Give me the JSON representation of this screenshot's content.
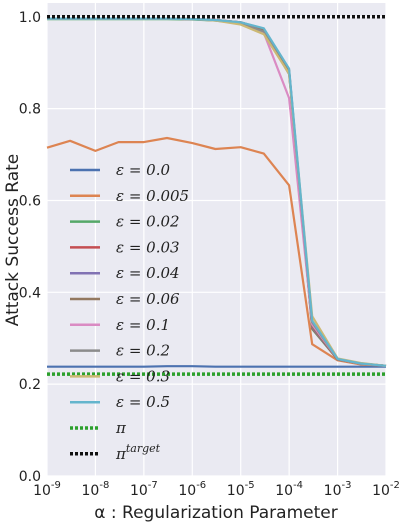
{
  "chart_data": {
    "type": "line",
    "title": "",
    "xlabel": "α : Regularization Parameter",
    "ylabel": "Attack Success Rate",
    "x_scale": "log",
    "xlim": [
      1e-09,
      0.01
    ],
    "ylim": [
      0.0,
      1.03
    ],
    "grid": true,
    "legend_position": "left",
    "x_tick_labels": [
      "10^-9",
      "10^-8",
      "10^-7",
      "10^-6",
      "10^-5",
      "10^-4",
      "10^-3",
      "10^-2"
    ],
    "y_tick_labels": [
      "0.0",
      "0.2",
      "0.4",
      "0.6",
      "0.8",
      "1.0"
    ],
    "x": [
      1e-09,
      3e-09,
      1e-08,
      3e-08,
      1e-07,
      3e-07,
      1e-06,
      3e-06,
      1e-05,
      3e-05,
      0.0001,
      0.0003,
      0.001,
      0.003,
      0.01
    ],
    "series": [
      {
        "name": "ε = 0.0",
        "color": "#4c72b0",
        "style": "solid",
        "values": [
          0.238,
          0.238,
          0.238,
          0.238,
          0.238,
          0.239,
          0.239,
          0.238,
          0.238,
          0.238,
          0.238,
          0.238,
          0.238,
          0.238,
          0.238
        ]
      },
      {
        "name": "ε = 0.005",
        "color": "#dd8452",
        "style": "solid",
        "values": [
          0.715,
          0.73,
          0.708,
          0.727,
          0.727,
          0.736,
          0.725,
          0.712,
          0.716,
          0.702,
          0.633,
          0.287,
          0.252,
          0.243,
          0.24
        ]
      },
      {
        "name": "ε = 0.02",
        "color": "#55a868",
        "style": "solid",
        "values": [
          0.995,
          0.995,
          0.995,
          0.995,
          0.995,
          0.995,
          0.994,
          0.992,
          0.987,
          0.97,
          0.88,
          0.32,
          0.254,
          0.245,
          0.24
        ]
      },
      {
        "name": "ε = 0.03",
        "color": "#c44e52",
        "style": "solid",
        "values": [
          0.996,
          0.996,
          0.996,
          0.996,
          0.996,
          0.996,
          0.995,
          0.993,
          0.988,
          0.972,
          0.882,
          0.322,
          0.254,
          0.245,
          0.24
        ]
      },
      {
        "name": "ε = 0.04",
        "color": "#8172b3",
        "style": "solid",
        "values": [
          0.996,
          0.996,
          0.996,
          0.996,
          0.996,
          0.996,
          0.995,
          0.993,
          0.988,
          0.972,
          0.882,
          0.324,
          0.254,
          0.245,
          0.24
        ]
      },
      {
        "name": "ε = 0.06",
        "color": "#937860",
        "style": "solid",
        "values": [
          0.996,
          0.996,
          0.996,
          0.996,
          0.996,
          0.996,
          0.995,
          0.993,
          0.988,
          0.973,
          0.884,
          0.326,
          0.254,
          0.245,
          0.24
        ]
      },
      {
        "name": "ε = 0.1",
        "color": "#da8bc3",
        "style": "solid",
        "values": [
          0.996,
          0.996,
          0.996,
          0.996,
          0.996,
          0.996,
          0.995,
          0.993,
          0.987,
          0.965,
          0.823,
          0.33,
          0.255,
          0.245,
          0.24
        ]
      },
      {
        "name": "ε = 0.2",
        "color": "#8c8c8c",
        "style": "solid",
        "values": [
          0.996,
          0.996,
          0.996,
          0.996,
          0.996,
          0.996,
          0.995,
          0.992,
          0.985,
          0.968,
          0.875,
          0.335,
          0.255,
          0.245,
          0.24
        ]
      },
      {
        "name": "ε = 0.3",
        "color": "#ccb974",
        "style": "solid",
        "values": [
          0.996,
          0.996,
          0.996,
          0.996,
          0.996,
          0.996,
          0.995,
          0.992,
          0.983,
          0.962,
          0.876,
          0.348,
          0.256,
          0.246,
          0.24
        ]
      },
      {
        "name": "ε = 0.5",
        "color": "#64b5cd",
        "style": "solid",
        "values": [
          0.996,
          0.996,
          0.996,
          0.996,
          0.996,
          0.996,
          0.995,
          0.993,
          0.988,
          0.975,
          0.887,
          0.338,
          0.255,
          0.245,
          0.24
        ]
      },
      {
        "name": "π",
        "color": "#2ca02c",
        "style": "dotted",
        "values": [
          0.222,
          0.222,
          0.222,
          0.222,
          0.222,
          0.222,
          0.222,
          0.222,
          0.222,
          0.222,
          0.222,
          0.222,
          0.222,
          0.222,
          0.222
        ]
      },
      {
        "name": "π^target",
        "color": "#111111",
        "style": "dotted",
        "values": [
          1.0,
          1.0,
          1.0,
          1.0,
          1.0,
          1.0,
          1.0,
          1.0,
          1.0,
          1.0,
          1.0,
          1.0,
          1.0,
          1.0,
          1.0
        ]
      }
    ]
  }
}
